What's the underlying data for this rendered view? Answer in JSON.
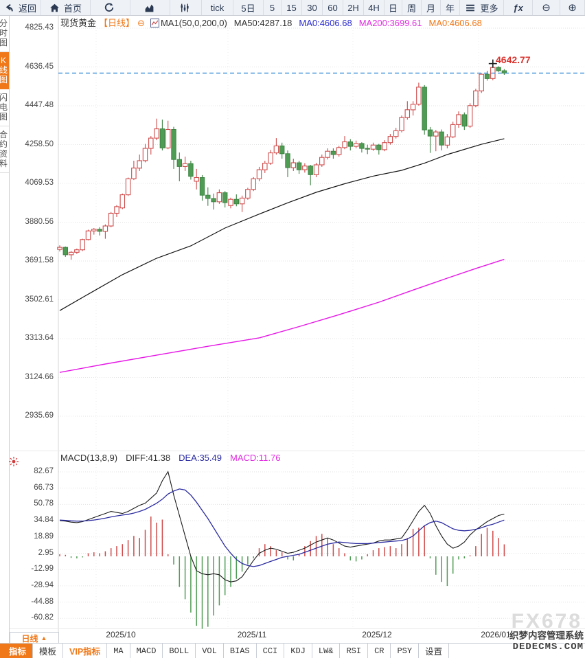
{
  "toolbar": {
    "items": [
      {
        "id": "back",
        "label": "返回",
        "icon": "back-arrow"
      },
      {
        "id": "home",
        "label": "首页",
        "icon": "home"
      },
      {
        "id": "refresh",
        "label": "",
        "icon": "refresh"
      },
      {
        "id": "area-chart",
        "label": "",
        "icon": "area-chart"
      },
      {
        "id": "candle-chart",
        "label": "",
        "icon": "candle-chart"
      },
      {
        "id": "tick",
        "label": "tick"
      },
      {
        "id": "period-5d",
        "label": "5日"
      },
      {
        "id": "period-5",
        "label": "5"
      },
      {
        "id": "period-15",
        "label": "15"
      },
      {
        "id": "period-30",
        "label": "30"
      },
      {
        "id": "period-60",
        "label": "60"
      },
      {
        "id": "period-2h",
        "label": "2H"
      },
      {
        "id": "period-4h",
        "label": "4H"
      },
      {
        "id": "period-day",
        "label": "日"
      },
      {
        "id": "period-week",
        "label": "周"
      },
      {
        "id": "period-month",
        "label": "月"
      },
      {
        "id": "period-year",
        "label": "年"
      },
      {
        "id": "more",
        "label": "更多",
        "icon": "menu"
      },
      {
        "id": "fx",
        "label": "ƒx"
      },
      {
        "id": "zoom-out",
        "label": "⊖"
      },
      {
        "id": "zoom-in",
        "label": "⊕"
      }
    ]
  },
  "sidebar": {
    "items": [
      {
        "label": "分时图",
        "active": false
      },
      {
        "label": "K线图",
        "active": true
      },
      {
        "label": "闪电图",
        "active": false
      },
      {
        "label": "合约资料",
        "active": false
      }
    ]
  },
  "chart_header": {
    "symbol": "现货黄金",
    "period_tag": "【日线】",
    "collapse_icon": "⊖",
    "ma_settings": "MA1(50,0,200,0)",
    "ma50": "MA50:4287.18",
    "ma0_blue": "MA0:4606.68",
    "ma200": "MA200:3699.61",
    "ma0_orange": "MA0:4606.68"
  },
  "price_marker": {
    "label": "4642.77"
  },
  "macd_header": {
    "title": "MACD(13,8,9)",
    "diff": "DIFF:41.38",
    "dea": "DEA:35.49",
    "macd": "MACD:11.76"
  },
  "period_box": {
    "label": "日线",
    "arrow": "▲"
  },
  "bottom_tabs": [
    {
      "label": "指标",
      "variant": "active"
    },
    {
      "label": "模板",
      "variant": "default"
    },
    {
      "label": "VIP指标",
      "variant": "vip"
    },
    {
      "label": "MA",
      "variant": "latin"
    },
    {
      "label": "MACD",
      "variant": "latin"
    },
    {
      "label": "BOLL",
      "variant": "latin"
    },
    {
      "label": "VOL",
      "variant": "latin"
    },
    {
      "label": "BIAS",
      "variant": "latin"
    },
    {
      "label": "CCI",
      "variant": "latin"
    },
    {
      "label": "KDJ",
      "variant": "latin"
    },
    {
      "label": "LW&",
      "variant": "latin"
    },
    {
      "label": "RSI",
      "variant": "latin"
    },
    {
      "label": "CR",
      "variant": "latin"
    },
    {
      "label": "PSY",
      "variant": "latin"
    },
    {
      "label": "设置",
      "variant": "default"
    }
  ],
  "watermark": {
    "brand": "FX678",
    "line1": "织梦内容管理系统",
    "line2": "DEDECMS.COM"
  },
  "colors": {
    "accent_orange": "#f07818",
    "up_red": "#cf4a4a",
    "down_green": "#4f9d54",
    "ma50_black": "#141414",
    "ma200_magenta": "#e616e6",
    "dea_blue": "#2b2ba0",
    "price_line_blue": "#3a8fd8",
    "price_label_red": "#d9332e"
  },
  "chart_data": [
    {
      "type": "candlestick",
      "title": "现货黄金 日线",
      "y_ticks": [
        "4825.43",
        "4636.45",
        "4447.48",
        "4258.50",
        "4069.53",
        "3880.56",
        "3691.58",
        "3502.61",
        "3313.64",
        "3124.66",
        "2935.69"
      ],
      "x_ticks": [
        "2025/10",
        "2025/11",
        "2025/12",
        "2026/01"
      ],
      "ylim": [
        2935.69,
        4825.43
      ],
      "grid": true,
      "current_price": 4606.68,
      "high_label": 4642.77,
      "candles_ohlc": [
        [
          3748,
          3768,
          3738,
          3758
        ],
        [
          3758,
          3762,
          3712,
          3722
        ],
        [
          3722,
          3740,
          3698,
          3734
        ],
        [
          3734,
          3752,
          3726,
          3746
        ],
        [
          3746,
          3800,
          3740,
          3796
        ],
        [
          3796,
          3844,
          3792,
          3838
        ],
        [
          3838,
          3852,
          3820,
          3846
        ],
        [
          3846,
          3856,
          3816,
          3836
        ],
        [
          3836,
          3870,
          3800,
          3862
        ],
        [
          3862,
          3930,
          3856,
          3924
        ],
        [
          3924,
          3964,
          3906,
          3956
        ],
        [
          3950,
          4020,
          3944,
          4014
        ],
        [
          4014,
          4098,
          4008,
          4092
        ],
        [
          4092,
          4180,
          4086,
          4144
        ],
        [
          4144,
          4210,
          4130,
          4180
        ],
        [
          4180,
          4262,
          4172,
          4240
        ],
        [
          4240,
          4300,
          4210,
          4290
        ],
        [
          4290,
          4385,
          4280,
          4335
        ],
        [
          4335,
          4380,
          4230,
          4242
        ],
        [
          4242,
          4375,
          4236,
          4332
        ],
        [
          4332,
          4345,
          4140,
          4186
        ],
        [
          4186,
          4220,
          4080,
          4152
        ],
        [
          4152,
          4200,
          4130,
          4166
        ],
        [
          4166,
          4180,
          4088,
          4104
        ],
        [
          4080,
          4140,
          4040,
          4098
        ],
        [
          4098,
          4110,
          3985,
          4012
        ],
        [
          4012,
          4050,
          3960,
          3996
        ],
        [
          3996,
          4020,
          3942,
          3980
        ],
        [
          3980,
          4040,
          3970,
          4024
        ],
        [
          4024,
          4032,
          3952,
          3976
        ],
        [
          3962,
          4000,
          3948,
          3992
        ],
        [
          3992,
          4016,
          3958,
          3970
        ],
        [
          3970,
          4010,
          3930,
          3998
        ],
        [
          3998,
          4048,
          3990,
          4040
        ],
        [
          4040,
          4100,
          4032,
          4092
        ],
        [
          4092,
          4150,
          4080,
          4136
        ],
        [
          4136,
          4180,
          4120,
          4168
        ],
        [
          4168,
          4232,
          4160,
          4218
        ],
        [
          4218,
          4290,
          4210,
          4252
        ],
        [
          4252,
          4268,
          4190,
          4214
        ],
        [
          4214,
          4230,
          4100,
          4146
        ],
        [
          4146,
          4190,
          4130,
          4170
        ],
        [
          4170,
          4180,
          4116,
          4136
        ],
        [
          4136,
          4168,
          4122,
          4154
        ],
        [
          4154,
          4160,
          4060,
          4112
        ],
        [
          4112,
          4170,
          4100,
          4160
        ],
        [
          4160,
          4210,
          4150,
          4196
        ],
        [
          4196,
          4240,
          4186,
          4226
        ],
        [
          4226,
          4240,
          4190,
          4210
        ],
        [
          4210,
          4252,
          4200,
          4244
        ],
        [
          4244,
          4300,
          4236,
          4272
        ],
        [
          4272,
          4285,
          4230,
          4250
        ],
        [
          4250,
          4278,
          4240,
          4264
        ],
        [
          4264,
          4270,
          4220,
          4240
        ],
        [
          4240,
          4258,
          4212,
          4236
        ],
        [
          4236,
          4268,
          4228,
          4256
        ],
        [
          4256,
          4262,
          4210,
          4234
        ],
        [
          4234,
          4280,
          4226,
          4268
        ],
        [
          4268,
          4310,
          4258,
          4298
        ],
        [
          4298,
          4340,
          4288,
          4326
        ],
        [
          4326,
          4400,
          4318,
          4390
        ],
        [
          4390,
          4470,
          4380,
          4428
        ],
        [
          4428,
          4470,
          4400,
          4455
        ],
        [
          4455,
          4560,
          4448,
          4538
        ],
        [
          4538,
          4548,
          4307,
          4330
        ],
        [
          4330,
          4344,
          4218,
          4300
        ],
        [
          4300,
          4330,
          4226,
          4320
        ],
        [
          4320,
          4332,
          4230,
          4256
        ],
        [
          4256,
          4310,
          4240,
          4296
        ],
        [
          4296,
          4370,
          4290,
          4356
        ],
        [
          4356,
          4420,
          4340,
          4404
        ],
        [
          4404,
          4415,
          4330,
          4348
        ],
        [
          4348,
          4460,
          4340,
          4448
        ],
        [
          4448,
          4530,
          4440,
          4520
        ],
        [
          4520,
          4606,
          4510,
          4601
        ],
        [
          4601,
          4618,
          4570,
          4580
        ],
        [
          4580,
          4642.77,
          4572,
          4634
        ],
        [
          4634,
          4640,
          4612,
          4618
        ],
        [
          4618,
          4626,
          4598,
          4606.68
        ]
      ],
      "ma50": {
        "label": "MA50:4287.18",
        "points": [
          [
            0,
            3450
          ],
          [
            5,
            3530
          ],
          [
            11,
            3625
          ],
          [
            17,
            3705
          ],
          [
            23,
            3765
          ],
          [
            29,
            3852
          ],
          [
            35,
            3920
          ],
          [
            40,
            3975
          ],
          [
            45,
            4026
          ],
          [
            50,
            4068
          ],
          [
            55,
            4105
          ],
          [
            60,
            4133
          ],
          [
            64,
            4168
          ],
          [
            68,
            4210
          ],
          [
            71,
            4235
          ],
          [
            74,
            4260
          ],
          [
            78,
            4287.18
          ]
        ]
      },
      "ma200": {
        "label": "MA200:3699.61",
        "points": [
          [
            0,
            3149
          ],
          [
            8,
            3190
          ],
          [
            17,
            3233
          ],
          [
            26,
            3276
          ],
          [
            35,
            3317
          ],
          [
            42,
            3372
          ],
          [
            49,
            3430
          ],
          [
            56,
            3491
          ],
          [
            62,
            3550
          ],
          [
            68,
            3608
          ],
          [
            73,
            3655
          ],
          [
            78,
            3699.61
          ]
        ]
      }
    },
    {
      "type": "macd",
      "params": "(13,8,9)",
      "y_ticks": [
        "82.67",
        "66.73",
        "50.78",
        "34.84",
        "18.89",
        "2.95",
        "-12.99",
        "-28.94",
        "-44.88",
        "-60.82"
      ],
      "diff": 41.38,
      "dea": 35.49,
      "macd": 11.76,
      "histogram": [
        2,
        1.5,
        -1.5,
        -2,
        -1,
        3,
        4,
        3,
        5,
        8,
        10,
        12,
        16,
        20,
        18,
        26,
        39,
        33,
        36,
        2,
        -8,
        -30,
        -42,
        -55,
        -68,
        -71,
        -69,
        -58,
        -48,
        -38,
        -30,
        -22,
        -15,
        -8,
        -2,
        8,
        12,
        10,
        6,
        4,
        -3,
        -4,
        2,
        10,
        15,
        20,
        22,
        18,
        12,
        8,
        3,
        -4,
        -5,
        -3,
        2,
        6,
        8,
        9,
        10,
        8,
        12,
        18,
        27,
        28,
        30,
        -2,
        -18,
        -25,
        -29,
        -17,
        -3,
        -2,
        1,
        10,
        22,
        28,
        25,
        18,
        11.76
      ],
      "diff_series": [
        35,
        34.5,
        33.5,
        33,
        34,
        36,
        38,
        40,
        42,
        44,
        43,
        42,
        44,
        47,
        50,
        52,
        57,
        62,
        74,
        83,
        60,
        40,
        20,
        0,
        -14,
        -17,
        -18,
        -17,
        -18,
        -23,
        -25,
        -24,
        -20,
        -12,
        -4,
        3,
        6,
        8,
        7,
        5,
        3,
        4,
        6,
        8,
        11,
        14,
        16,
        18,
        16,
        13,
        10,
        9,
        10,
        11,
        12,
        13,
        15,
        16,
        16,
        17,
        18,
        26,
        35,
        44,
        50,
        42,
        30,
        20,
        12,
        8,
        10,
        14,
        21,
        26,
        30,
        34,
        37,
        40,
        41.38
      ],
      "dea_series": [
        35.5,
        35.2,
        34.8,
        34.5,
        34.6,
        35,
        35.6,
        36.4,
        37.4,
        38.6,
        39.6,
        40.4,
        41.2,
        42.4,
        44,
        46,
        49,
        52,
        56,
        61,
        64,
        66,
        65,
        60,
        53,
        45,
        37,
        28,
        19,
        10,
        3,
        -3,
        -7,
        -9,
        -10,
        -9,
        -7,
        -5,
        -3,
        -1,
        0,
        1,
        2,
        4,
        6,
        8,
        10,
        12,
        13,
        14,
        13.5,
        13,
        12.5,
        12.5,
        12.5,
        13,
        13.5,
        14,
        14.5,
        15,
        15.5,
        17,
        20,
        25,
        30,
        33,
        34.5,
        33,
        30,
        27,
        25.5,
        25,
        25.5,
        26.5,
        28,
        30,
        31.5,
        33.5,
        35.49
      ]
    }
  ]
}
